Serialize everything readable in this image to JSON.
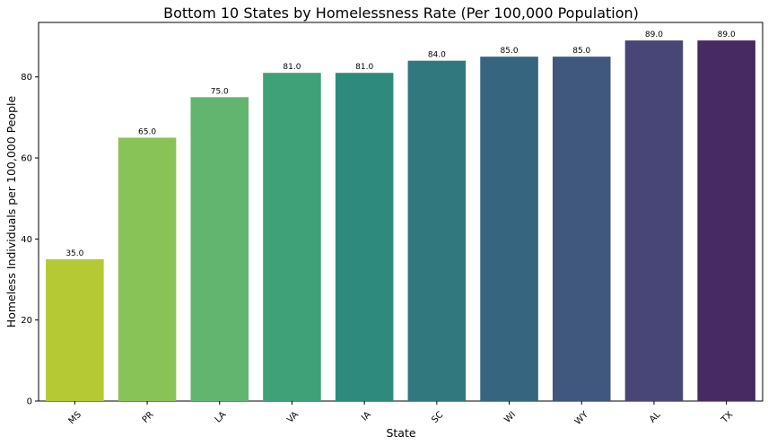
{
  "chart_data": {
    "type": "bar",
    "title": "Bottom 10 States by Homelessness Rate (Per 100,000 Population)",
    "xlabel": "State",
    "ylabel": "Homeless Individuals per 100,000 People",
    "categories": [
      "MS",
      "PR",
      "LA",
      "VA",
      "IA",
      "SC",
      "WI",
      "WY",
      "AL",
      "TX"
    ],
    "values": [
      35.0,
      65.0,
      75.0,
      81.0,
      81.0,
      84.0,
      85.0,
      85.0,
      89.0,
      89.0
    ],
    "data_labels": [
      "35.0",
      "65.0",
      "75.0",
      "81.0",
      "81.0",
      "84.0",
      "85.0",
      "85.0",
      "89.0",
      "89.0"
    ],
    "colors": [
      "#b5c935",
      "#88c357",
      "#61b56e",
      "#3fa177",
      "#2e8a7c",
      "#31787e",
      "#36657f",
      "#40577e",
      "#484677",
      "#482a63"
    ],
    "ylim": [
      0,
      93.45
    ],
    "yticks": [
      0,
      20,
      40,
      60,
      80
    ],
    "ytick_labels": [
      "0",
      "20",
      "40",
      "60",
      "80"
    ],
    "grid": false,
    "legend": "none"
  }
}
